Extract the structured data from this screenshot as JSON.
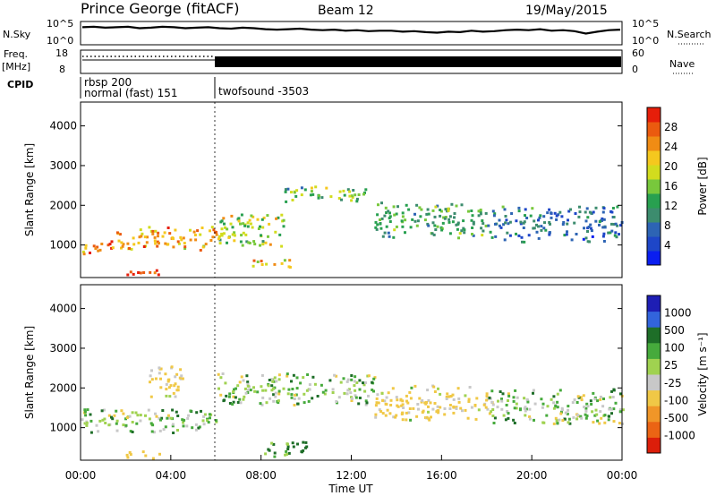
{
  "header": {
    "station": "Prince George (fitACF)",
    "beam": "Beam 12",
    "date": "19/May/2015"
  },
  "noise_panel": {
    "left_label": "N.Sky",
    "right_label": "N.Search",
    "left_ticks": [
      "10^5",
      "10^0"
    ],
    "right_ticks": [
      "10^5",
      "10^0"
    ],
    "sky_level": [
      3.2,
      3.3,
      3.1,
      3.2,
      3.3,
      3.0,
      3.1,
      3.3,
      3.2,
      3.0,
      3.1,
      3.2,
      3.0,
      2.9,
      3.1,
      3.0,
      2.8,
      2.7,
      2.8,
      2.9,
      2.7,
      2.6,
      2.7,
      2.5,
      2.6,
      2.4,
      2.5,
      2.5,
      2.3,
      2.4,
      2.2,
      2.1,
      2.3,
      2.2,
      2.5,
      2.3,
      2.4,
      2.6,
      2.7,
      2.6,
      2.8,
      2.5,
      2.6,
      2.4,
      1.9,
      2.3,
      2.6,
      2.7
    ]
  },
  "freq_panel": {
    "left_label_top": "Freq.",
    "left_label_bottom": "[MHz]",
    "right_label": "Nave",
    "left_ticks": [
      "18",
      "8"
    ],
    "right_ticks": [
      "60",
      "0"
    ],
    "cpid_label": "CPID",
    "cpid_entries": [
      {
        "line1": "rbsp 200",
        "line2": "normal (fast) 151"
      },
      {
        "line1": "",
        "line2": "twofsound -3503"
      }
    ],
    "mode_switch_hour": 6.0
  },
  "colors": {
    "power_scale": [
      "#0a1ef0",
      "#1e46c8",
      "#2d64b4",
      "#3c8c6e",
      "#28a050",
      "#78c83c",
      "#d2dc1e",
      "#f5c81e",
      "#f08c14",
      "#eb5a0f",
      "#e61e0a"
    ],
    "velocity_scale": [
      "#1e1eb4",
      "#3264dc",
      "#1e6e28",
      "#46aa3c",
      "#a0d250",
      "#c8c8c8",
      "#f0c846",
      "#f09628",
      "#eb6414",
      "#dc1e0a"
    ]
  },
  "power_colorbar": {
    "label": "Power [dB]",
    "ticks": [
      "4",
      "8",
      "12",
      "16",
      "20",
      "24",
      "28"
    ]
  },
  "velocity_colorbar": {
    "label": "Velocity [m s⁻¹]",
    "ticks": [
      "1000",
      "500",
      "100",
      "25",
      "-25",
      "-100",
      "-500",
      "-1000"
    ]
  },
  "chart_data": [
    {
      "type": "heatmap",
      "panel": "power",
      "ylabel": "Slant Range [km]",
      "xlim": [
        0,
        24
      ],
      "ylim": [
        180,
        4600
      ],
      "yticks": [
        1000,
        2000,
        3000,
        4000
      ],
      "zlim": [
        0,
        30
      ],
      "bands": [
        {
          "t0": 0.0,
          "t1": 1.5,
          "r0": 800,
          "r1": 1200,
          "p": 24
        },
        {
          "t0": 1.5,
          "t1": 6.0,
          "r0": 900,
          "r1": 1500,
          "p": 22
        },
        {
          "t0": 6.0,
          "t1": 9.0,
          "r0": 1000,
          "r1": 1800,
          "p": 16
        },
        {
          "t0": 9.0,
          "t1": 13.0,
          "r0": 2100,
          "r1": 2500,
          "p": 14
        },
        {
          "t0": 13.0,
          "t1": 18.0,
          "r0": 1200,
          "r1": 2100,
          "p": 12
        },
        {
          "t0": 18.0,
          "t1": 24.0,
          "r0": 1100,
          "r1": 2000,
          "p": 8
        },
        {
          "t0": 2.0,
          "t1": 3.5,
          "r0": 250,
          "r1": 450,
          "p": 26
        },
        {
          "t0": 7.5,
          "t1": 9.5,
          "r0": 450,
          "r1": 650,
          "p": 20
        }
      ]
    },
    {
      "type": "heatmap",
      "panel": "velocity",
      "ylabel": "Slant Range [km]",
      "xlabel": "Time UT",
      "xlim": [
        0,
        24
      ],
      "ylim": [
        180,
        4600
      ],
      "xticks": [
        "00:00",
        "04:00",
        "08:00",
        "12:00",
        "16:00",
        "20:00",
        "00:00"
      ],
      "yticks": [
        1000,
        2000,
        3000,
        4000
      ],
      "zlim": [
        -1000,
        1000
      ],
      "bands": [
        {
          "t0": 0.0,
          "t1": 6.0,
          "r0": 900,
          "r1": 1500,
          "v": 0
        },
        {
          "t0": 6.0,
          "t1": 13.0,
          "r0": 1600,
          "r1": 2400,
          "v": 10
        },
        {
          "t0": 13.0,
          "t1": 18.0,
          "r0": 1200,
          "r1": 2100,
          "v": -150
        },
        {
          "t0": 18.0,
          "t1": 24.0,
          "r0": 1100,
          "r1": 2000,
          "v": 0
        },
        {
          "t0": 2.0,
          "t1": 3.5,
          "r0": 250,
          "r1": 450,
          "v": -250
        },
        {
          "t0": 8.0,
          "t1": 10.0,
          "r0": 300,
          "r1": 700,
          "v": 150
        },
        {
          "t0": 3.0,
          "t1": 4.5,
          "r0": 1800,
          "r1": 2600,
          "v": -180
        }
      ]
    }
  ]
}
